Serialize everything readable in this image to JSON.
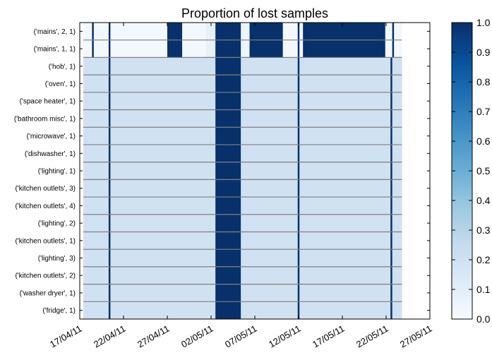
{
  "chart_data": {
    "type": "heatmap",
    "title": "Proportion of lost samples",
    "xlabel": "",
    "ylabel": "",
    "x_tick_labels": [
      "17/04/11",
      "22/04/11",
      "27/04/11",
      "02/05/11",
      "07/05/11",
      "12/05/11",
      "17/05/11",
      "22/05/11",
      "27/05/11"
    ],
    "x_range_days": [
      0,
      40
    ],
    "data_range_days": [
      0.4,
      36.8
    ],
    "rows": [
      "('mains', 2, 1)",
      "('mains', 1, 1)",
      "('hob', 1)",
      "('oven', 1)",
      "('space heater', 1)",
      "('bathroom misc', 1)",
      "('microwave', 1)",
      "('dishwasher', 1)",
      "('lighting', 1)",
      "('kitchen outlets', 3)",
      "('kitchen outlets', 4)",
      "('lighting', 2)",
      "('kitchen outlets', 1)",
      "('lighting', 3)",
      "('kitchen outlets', 2)",
      "('washer dryer', 1)",
      "('fridge', 1)"
    ],
    "mains_segments": [
      {
        "start": 0.4,
        "end": 1.4,
        "value": 0.02
      },
      {
        "start": 1.4,
        "end": 1.6,
        "value": 1.0
      },
      {
        "start": 1.6,
        "end": 3.3,
        "value": 0.02
      },
      {
        "start": 3.3,
        "end": 3.5,
        "value": 1.0
      },
      {
        "start": 3.5,
        "end": 10.0,
        "value": 0.02
      },
      {
        "start": 10.0,
        "end": 11.7,
        "value": 1.0
      },
      {
        "start": 11.7,
        "end": 14.4,
        "value": 0.02
      },
      {
        "start": 14.4,
        "end": 15.5,
        "value": 0.08
      },
      {
        "start": 15.5,
        "end": 18.4,
        "value": 1.0
      },
      {
        "start": 18.4,
        "end": 19.4,
        "value": 0.05
      },
      {
        "start": 19.4,
        "end": 23.2,
        "value": 1.0
      },
      {
        "start": 23.2,
        "end": 24.9,
        "value": 0.02
      },
      {
        "start": 24.9,
        "end": 25.1,
        "value": 1.0
      },
      {
        "start": 25.1,
        "end": 25.5,
        "value": 0.02
      },
      {
        "start": 25.5,
        "end": 34.9,
        "value": 1.0
      },
      {
        "start": 34.9,
        "end": 35.7,
        "value": 0.02
      },
      {
        "start": 35.7,
        "end": 35.9,
        "value": 1.0
      },
      {
        "start": 35.9,
        "end": 36.8,
        "value": 0.02
      }
    ],
    "appliance_segments": [
      {
        "start": 0.4,
        "end": 3.3,
        "value": 0.2
      },
      {
        "start": 3.3,
        "end": 3.5,
        "value": 1.0
      },
      {
        "start": 3.5,
        "end": 15.5,
        "value": 0.2
      },
      {
        "start": 15.5,
        "end": 18.4,
        "value": 1.0
      },
      {
        "start": 18.4,
        "end": 24.9,
        "value": 0.2
      },
      {
        "start": 24.9,
        "end": 25.1,
        "value": 1.0
      },
      {
        "start": 25.1,
        "end": 35.5,
        "value": 0.2
      },
      {
        "start": 35.5,
        "end": 35.7,
        "value": 1.0
      },
      {
        "start": 35.7,
        "end": 36.8,
        "value": 0.2
      }
    ],
    "colorbar": {
      "colormap": "Blues",
      "range": [
        0,
        1
      ],
      "ticks": [
        "0.0",
        "0.1",
        "0.2",
        "0.3",
        "0.4",
        "0.5",
        "0.6",
        "0.7",
        "0.8",
        "0.9",
        "1.0"
      ]
    },
    "colors": {
      "low": "#f7fbff",
      "mid": "#c6dbef",
      "high": "#08306b",
      "row_separator": "#7f7f7f"
    }
  }
}
